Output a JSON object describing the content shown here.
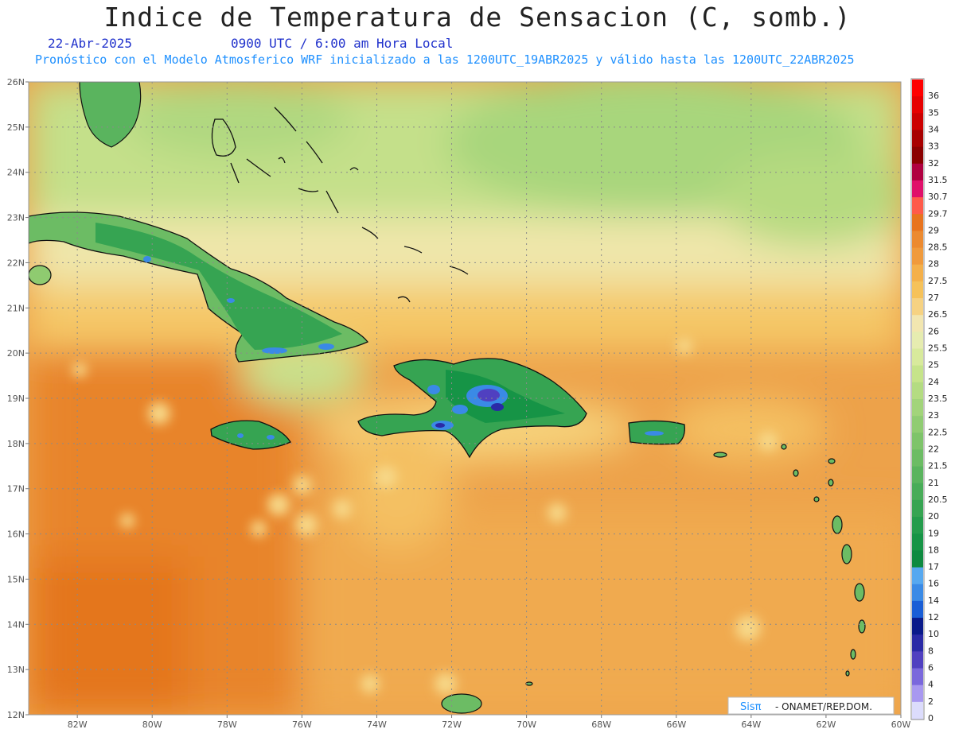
{
  "header": {
    "title": "Indice de Temperatura de Sensacion (C, somb.)",
    "date": "22-Abr-2025",
    "time": "0900 UTC / 6:00 am Hora Local",
    "model_info": "Pronóstico con el Modelo Atmosferico WRF inicializado a las 1200UTC_19ABR2025 y válido hasta las  1200UTC_22ABR2025"
  },
  "map": {
    "lon_range": [
      -83.3,
      -60
    ],
    "lat_range": [
      12,
      26
    ],
    "lon_ticks": [
      {
        "value": -82,
        "label": "82W"
      },
      {
        "value": -80,
        "label": "80W"
      },
      {
        "value": -78,
        "label": "78W"
      },
      {
        "value": -76,
        "label": "76W"
      },
      {
        "value": -74,
        "label": "74W"
      },
      {
        "value": -72,
        "label": "72W"
      },
      {
        "value": -70,
        "label": "70W"
      },
      {
        "value": -68,
        "label": "68W"
      },
      {
        "value": -66,
        "label": "66W"
      },
      {
        "value": -64,
        "label": "64W"
      },
      {
        "value": -62,
        "label": "62W"
      },
      {
        "value": -60,
        "label": "60W"
      }
    ],
    "lat_ticks": [
      {
        "value": 26,
        "label": "26N"
      },
      {
        "value": 25,
        "label": "25N"
      },
      {
        "value": 24,
        "label": "24N"
      },
      {
        "value": 23,
        "label": "23N"
      },
      {
        "value": 22,
        "label": "22N"
      },
      {
        "value": 21,
        "label": "21N"
      },
      {
        "value": 20,
        "label": "20N"
      },
      {
        "value": 19,
        "label": "19N"
      },
      {
        "value": 18,
        "label": "18N"
      },
      {
        "value": 17,
        "label": "17N"
      },
      {
        "value": 16,
        "label": "16N"
      },
      {
        "value": 15,
        "label": "15N"
      },
      {
        "value": 14,
        "label": "14N"
      },
      {
        "value": 13,
        "label": "13N"
      },
      {
        "value": 12,
        "label": "12N"
      }
    ],
    "grid": true
  },
  "colorbar": {
    "levels": [
      {
        "label": "36",
        "color": "#ff0000"
      },
      {
        "label": "35",
        "color": "#e60000"
      },
      {
        "label": "34",
        "color": "#cc0000"
      },
      {
        "label": "33",
        "color": "#a80000"
      },
      {
        "label": "32",
        "color": "#8b0000"
      },
      {
        "label": "31.5",
        "color": "#b00040"
      },
      {
        "label": "30.7",
        "color": "#e0106a"
      },
      {
        "label": "29.7",
        "color": "#ff5a4a"
      },
      {
        "label": "29",
        "color": "#e8741e"
      },
      {
        "label": "28.5",
        "color": "#ec8a30"
      },
      {
        "label": "28",
        "color": "#f09a3c"
      },
      {
        "label": "27.5",
        "color": "#f4b04a"
      },
      {
        "label": "27",
        "color": "#f6c25a"
      },
      {
        "label": "26.5",
        "color": "#f6d282"
      },
      {
        "label": "26",
        "color": "#f2e6b0"
      },
      {
        "label": "25.5",
        "color": "#e6ecb0"
      },
      {
        "label": "25",
        "color": "#d8ea9c"
      },
      {
        "label": "24",
        "color": "#c6e48a"
      },
      {
        "label": "23.5",
        "color": "#b4dc82"
      },
      {
        "label": "23",
        "color": "#a2d47a"
      },
      {
        "label": "22.5",
        "color": "#90cc72"
      },
      {
        "label": "22",
        "color": "#7ec46a"
      },
      {
        "label": "21.5",
        "color": "#6cbc64"
      },
      {
        "label": "21",
        "color": "#5ab45e"
      },
      {
        "label": "20.5",
        "color": "#48ac58"
      },
      {
        "label": "20",
        "color": "#36a452"
      },
      {
        "label": "19",
        "color": "#249c4c"
      },
      {
        "label": "18",
        "color": "#169446"
      },
      {
        "label": "17",
        "color": "#0e8a40"
      },
      {
        "label": "16",
        "color": "#56a8f0"
      },
      {
        "label": "14",
        "color": "#3a8ae6"
      },
      {
        "label": "12",
        "color": "#1a5ed6"
      },
      {
        "label": "10",
        "color": "#0a1a8a"
      },
      {
        "label": "8",
        "color": "#2a2aa6"
      },
      {
        "label": "6",
        "color": "#5040c0"
      },
      {
        "label": "4",
        "color": "#7a68dc"
      },
      {
        "label": "2",
        "color": "#a898f0"
      },
      {
        "label": "0",
        "color": "#dcdcfc"
      }
    ]
  },
  "logo": {
    "brand": "Sisπ",
    "text": "- ONAMET/REP.DOM."
  }
}
